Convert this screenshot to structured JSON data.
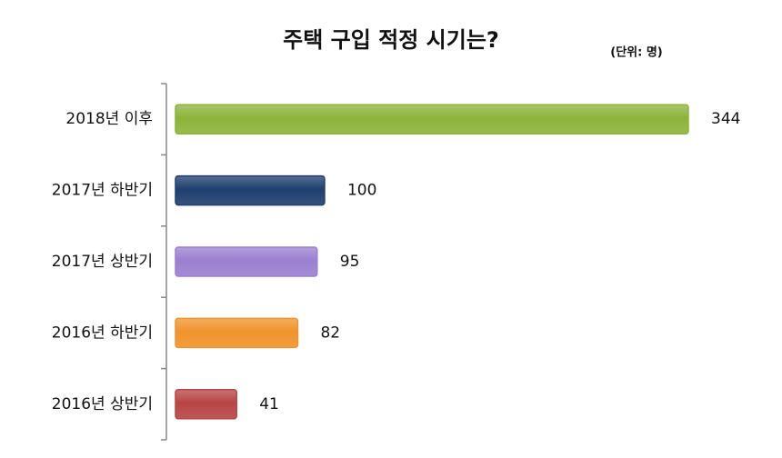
{
  "chart_data": {
    "type": "bar",
    "orientation": "horizontal",
    "title": "주택 구입 적정 시기는?",
    "unit_note": "(단위: 명)",
    "categories": [
      "2018년 이후",
      "2017년  하반기",
      "2017년  상반기",
      "2016년  하반기",
      "2016년 상반기"
    ],
    "values": [
      344,
      100,
      95,
      82,
      41
    ],
    "colors": [
      "#8db33a",
      "#1f3f6e",
      "#9b7fd0",
      "#f0932c",
      "#b84545"
    ]
  }
}
